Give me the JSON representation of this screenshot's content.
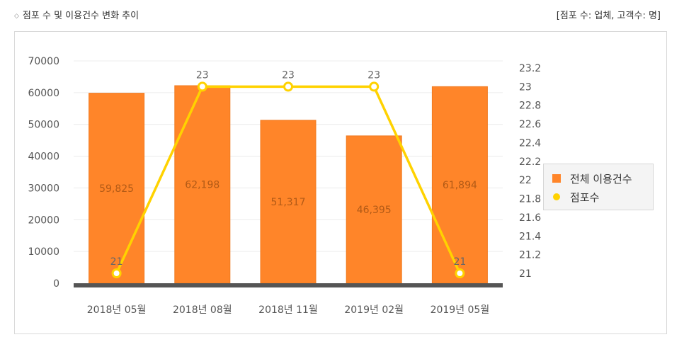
{
  "header": {
    "title": "점포 수 및 이용건수 변화 추이",
    "unit_note": "[점포 수: 업체, 고객수: 명]"
  },
  "chart_data": {
    "type": "bar",
    "categories": [
      "2018년 05월",
      "2018년 08월",
      "2018년 11월",
      "2019년 02월",
      "2019년 05월"
    ],
    "series": [
      {
        "name": "전체 이용건수",
        "type": "bar",
        "axis": "left",
        "color": "#ff8529",
        "values": [
          59825,
          62198,
          51317,
          46395,
          61894
        ],
        "labels": [
          "59,825",
          "62,198",
          "51,317",
          "46,395",
          "61,894"
        ]
      },
      {
        "name": "점포수",
        "type": "line",
        "axis": "right",
        "color": "#ffd200",
        "values": [
          21,
          23,
          23,
          23,
          21
        ],
        "labels": [
          "21",
          "23",
          "23",
          "23",
          "21"
        ]
      }
    ],
    "left_axis": {
      "min": 0,
      "max": 70000,
      "ticks": [
        0,
        10000,
        20000,
        30000,
        40000,
        50000,
        60000,
        70000
      ]
    },
    "right_axis": {
      "min": 21,
      "max": 23.2,
      "ticks": [
        "21",
        "21.2",
        "21.4",
        "21.6",
        "21.8",
        "22",
        "22.2",
        "22.4",
        "22.6",
        "22.8",
        "23",
        "23.2"
      ]
    },
    "grid": true,
    "legend_position": "right"
  }
}
